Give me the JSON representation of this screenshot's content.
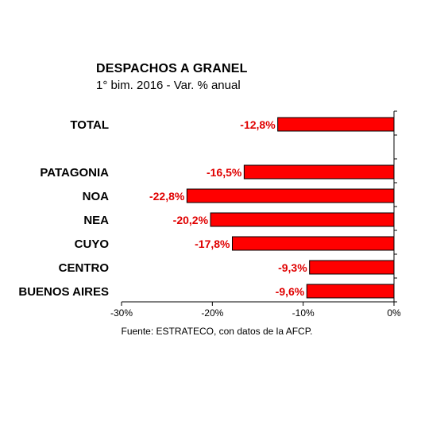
{
  "chart_data": {
    "type": "bar",
    "orientation": "horizontal",
    "title": "DESPACHOS A GRANEL",
    "subtitle": "1° bim. 2016 - Var. % anual",
    "source": "Fuente: ESTRATECO, con datos de la AFCP.",
    "categories": [
      "TOTAL",
      "",
      "PATAGONIA",
      "NOA",
      "NEA",
      "CUYO",
      "CENTRO",
      "BUENOS AIRES"
    ],
    "values": [
      -12.8,
      null,
      -16.5,
      -22.8,
      -20.2,
      -17.8,
      -9.3,
      -9.6
    ],
    "data_labels": [
      "-12,8%",
      "",
      "-16,5%",
      "-22,8%",
      "-20,2%",
      "-17,8%",
      "-9,3%",
      "-9,6%"
    ],
    "xlim": [
      -30,
      0
    ],
    "ticks": [
      -30,
      -20,
      -10,
      0
    ],
    "tick_labels": [
      "-30%",
      "-20%",
      "-10%",
      "0%"
    ],
    "bar_color": "#ff0000",
    "label_color": "#e00000",
    "grid": false,
    "legend": "none"
  }
}
